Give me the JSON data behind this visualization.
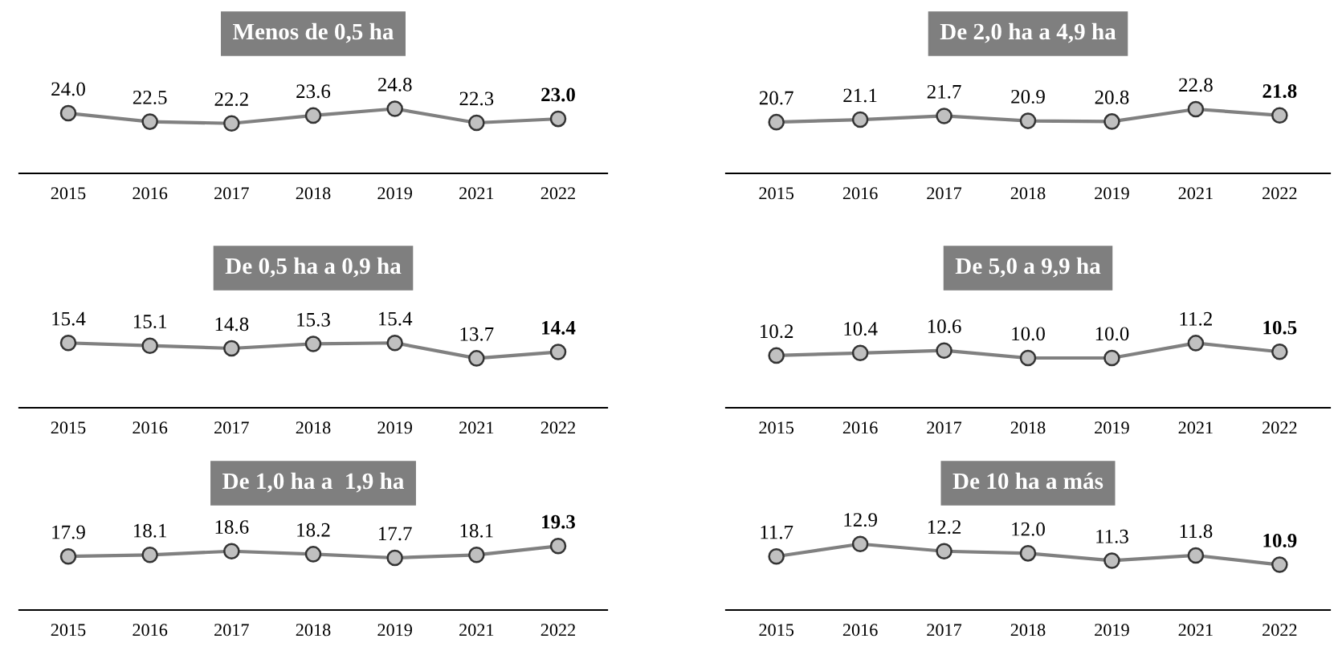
{
  "chart_data": [
    {
      "type": "line",
      "title": "Menos de 0,5 ha",
      "categories": [
        "2015",
        "2016",
        "2017",
        "2018",
        "2019",
        "2021",
        "2022"
      ],
      "series": [
        {
          "color": "#808080",
          "values": [
            24.0,
            22.5,
            22.2,
            23.6,
            24.8,
            22.3,
            23.0
          ],
          "value_labels": [
            "24.0",
            "22.5",
            "22.2",
            "23.6",
            "24.8",
            "22.3",
            "23.0"
          ]
        }
      ],
      "marker": "circle",
      "grid": false,
      "legend": false
    },
    {
      "type": "line",
      "title": "De 2,0 ha a 4,9 ha",
      "categories": [
        "2015",
        "2016",
        "2017",
        "2018",
        "2019",
        "2021",
        "2022"
      ],
      "series": [
        {
          "color": "#808080",
          "values": [
            20.7,
            21.1,
            21.7,
            20.9,
            20.8,
            22.8,
            21.8
          ],
          "value_labels": [
            "20.7",
            "21.1",
            "21.7",
            "20.9",
            "20.8",
            "22.8",
            "21.8"
          ]
        }
      ],
      "marker": "circle",
      "grid": false,
      "legend": false
    },
    {
      "type": "line",
      "title": "De 0,5 ha a 0,9 ha",
      "categories": [
        "2015",
        "2016",
        "2017",
        "2018",
        "2019",
        "2021",
        "2022"
      ],
      "series": [
        {
          "color": "#808080",
          "values": [
            15.4,
            15.1,
            14.8,
            15.3,
            15.4,
            13.7,
            14.4
          ],
          "value_labels": [
            "15.4",
            "15.1",
            "14.8",
            "15.3",
            "15.4",
            "13.7",
            "14.4"
          ]
        }
      ],
      "marker": "circle",
      "grid": false,
      "legend": false
    },
    {
      "type": "line",
      "title": "De 5,0 a 9,9 ha",
      "categories": [
        "2015",
        "2016",
        "2017",
        "2018",
        "2019",
        "2021",
        "2022"
      ],
      "series": [
        {
          "color": "#808080",
          "values": [
            10.2,
            10.4,
            10.6,
            10.0,
            10.0,
            11.2,
            10.5
          ],
          "value_labels": [
            "10.2",
            "10.4",
            "10.6",
            "10.0",
            "10.0",
            "11.2",
            "10.5"
          ]
        }
      ],
      "marker": "circle",
      "grid": false,
      "legend": false
    },
    {
      "type": "line",
      "title": "De 1,0 ha a  1,9 ha",
      "categories": [
        "2015",
        "2016",
        "2017",
        "2018",
        "2019",
        "2021",
        "2022"
      ],
      "series": [
        {
          "color": "#808080",
          "values": [
            17.9,
            18.1,
            18.6,
            18.2,
            17.7,
            18.1,
            19.3
          ],
          "value_labels": [
            "17.9",
            "18.1",
            "18.6",
            "18.2",
            "17.7",
            "18.1",
            "19.3"
          ]
        }
      ],
      "marker": "circle",
      "grid": false,
      "legend": false
    },
    {
      "type": "line",
      "title": "De 10 ha a más",
      "categories": [
        "2015",
        "2016",
        "2017",
        "2018",
        "2019",
        "2021",
        "2022"
      ],
      "series": [
        {
          "color": "#808080",
          "values": [
            11.7,
            12.9,
            12.2,
            12.0,
            11.3,
            11.8,
            10.9
          ],
          "value_labels": [
            "11.7",
            "12.9",
            "12.2",
            "12.0",
            "11.3",
            "11.8",
            "10.9"
          ]
        }
      ],
      "marker": "circle",
      "grid": false,
      "legend": false
    }
  ]
}
